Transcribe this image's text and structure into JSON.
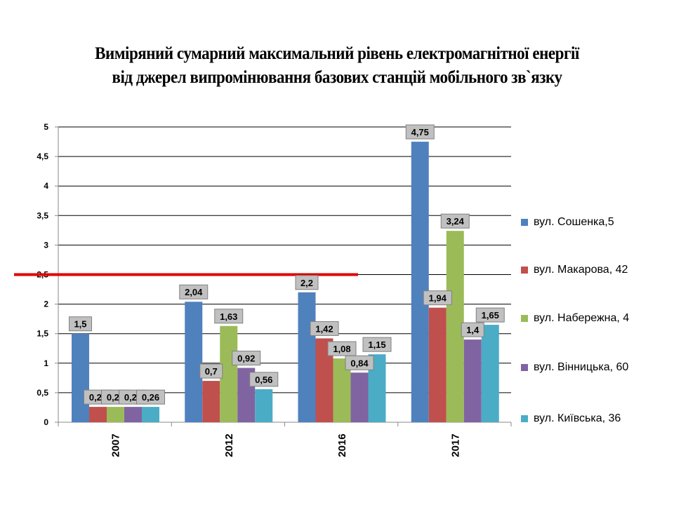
{
  "chart_data": {
    "type": "bar",
    "title_lines": [
      "Виміряний сумарний максимальний рівень електромагнітної енергії",
      "від джерел випромінювання базових станцій мобільного зв`язку"
    ],
    "categories": [
      "2007",
      "2012",
      "2016",
      "2017"
    ],
    "series": [
      {
        "name": "вул. Сошенка,5",
        "color": "#4F81BD",
        "values": [
          1.5,
          2.04,
          2.2,
          4.75
        ],
        "labels": [
          "1,5",
          "2,04",
          "2,2",
          "4,75"
        ]
      },
      {
        "name": "вул. Макарова, 42",
        "color": "#C0504D",
        "values": [
          0.26,
          0.7,
          1.42,
          1.94
        ],
        "labels": [
          "0,26",
          "0,7",
          "1,42",
          "1,94"
        ]
      },
      {
        "name": "вул. Набережна,  4",
        "color": "#9BBB59",
        "values": [
          0.26,
          1.63,
          1.08,
          3.24
        ],
        "labels": [
          "0,26",
          "1,63",
          "1,08",
          "3,24"
        ]
      },
      {
        "name": "вул. Вінницька,  60",
        "color": "#8064A2",
        "values": [
          0.26,
          0.92,
          0.84,
          1.4
        ],
        "labels": [
          "0,26",
          "0,92",
          "0,84",
          "1,4"
        ]
      },
      {
        "name": "вул. Київська, 36",
        "color": "#4BACC6",
        "values": [
          0.26,
          0.56,
          1.15,
          1.65
        ],
        "labels": [
          "0,26",
          "0,56",
          "1,15",
          "1,65"
        ]
      }
    ],
    "ylim": [
      0,
      5
    ],
    "yticks": [
      0,
      0.5,
      1,
      1.5,
      2,
      2.5,
      3,
      3.5,
      4,
      4.5,
      5
    ],
    "ytick_labels": [
      "0",
      "0,5",
      "1",
      "1,5",
      "2",
      "2,5",
      "3",
      "3,5",
      "4",
      "4,5",
      "5"
    ],
    "grid": true,
    "reference_line": {
      "value": 2.5,
      "color": "#E00000"
    },
    "legend_position": "right"
  }
}
